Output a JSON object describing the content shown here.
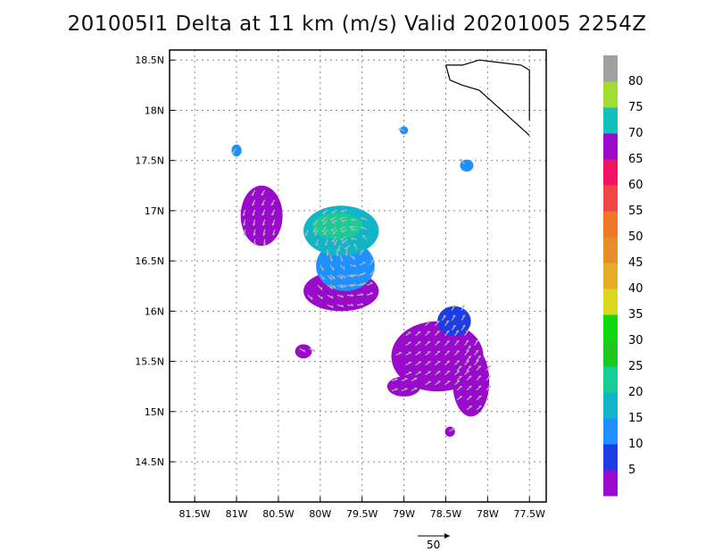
{
  "title": "201005I1 Delta at 11 km (m/s) Valid 20201005 2254Z",
  "chart_data": {
    "type": "heatmap",
    "title": "201005I1 Delta at 11 km (m/s) Valid 20201005 2254Z",
    "x_ticks": [
      {
        "value": -81.5,
        "label": "81.5W"
      },
      {
        "value": -81.0,
        "label": "81W"
      },
      {
        "value": -80.5,
        "label": "80.5W"
      },
      {
        "value": -80.0,
        "label": "80W"
      },
      {
        "value": -79.5,
        "label": "79.5W"
      },
      {
        "value": -79.0,
        "label": "79W"
      },
      {
        "value": -78.5,
        "label": "78.5W"
      },
      {
        "value": -78.0,
        "label": "78W"
      },
      {
        "value": -77.5,
        "label": "77.5W"
      }
    ],
    "y_ticks": [
      {
        "value": 14.5,
        "label": "14.5N"
      },
      {
        "value": 15.0,
        "label": "15N"
      },
      {
        "value": 15.5,
        "label": "15.5N"
      },
      {
        "value": 16.0,
        "label": "16N"
      },
      {
        "value": 16.5,
        "label": "16.5N"
      },
      {
        "value": 17.0,
        "label": "17N"
      },
      {
        "value": 17.5,
        "label": "17.5N"
      },
      {
        "value": 18.0,
        "label": "18N"
      },
      {
        "value": 18.5,
        "label": "18.5N"
      }
    ],
    "xlim": [
      -81.8,
      -77.3
    ],
    "ylim": [
      14.1,
      18.6
    ],
    "grid": true,
    "colorbar": {
      "levels": [
        {
          "label": "5",
          "color": "#9a0acb"
        },
        {
          "label": "10",
          "color": "#1e3ce6"
        },
        {
          "label": "15",
          "color": "#1e90ff"
        },
        {
          "label": "20",
          "color": "#12b4c8"
        },
        {
          "label": "25",
          "color": "#18cc96"
        },
        {
          "label": "30",
          "color": "#1ec81e"
        },
        {
          "label": "35",
          "color": "#10d810"
        },
        {
          "label": "40",
          "color": "#dcd820"
        },
        {
          "label": "45",
          "color": "#e6ac28"
        },
        {
          "label": "50",
          "color": "#e68c28"
        },
        {
          "label": "55",
          "color": "#ee7828"
        },
        {
          "label": "60",
          "color": "#f04646"
        },
        {
          "label": "65",
          "color": "#f01464"
        },
        {
          "label": "70",
          "color": "#9a0acb"
        },
        {
          "label": "75",
          "color": "#12c0c0"
        },
        {
          "label": "80",
          "color": "#a0dc32"
        },
        {
          "label": "",
          "color": "#a0a0a0"
        }
      ]
    },
    "regions": [
      {
        "level": 5,
        "center": [
          -80.7,
          16.95
        ],
        "radius": [
          0.25,
          0.3
        ]
      },
      {
        "level": 5,
        "center": [
          -79.75,
          16.2
        ],
        "radius": [
          0.45,
          0.2
        ]
      },
      {
        "level": 5,
        "center": [
          -78.6,
          15.55
        ],
        "radius": [
          0.55,
          0.35
        ]
      },
      {
        "level": 5,
        "center": [
          -78.2,
          15.3
        ],
        "radius": [
          0.22,
          0.35
        ]
      },
      {
        "level": 5,
        "center": [
          -80.2,
          15.6
        ],
        "radius": [
          0.1,
          0.07
        ]
      },
      {
        "level": 5,
        "center": [
          -79.0,
          15.25
        ],
        "radius": [
          0.2,
          0.1
        ]
      },
      {
        "level": 5,
        "center": [
          -78.45,
          14.8
        ],
        "radius": [
          0.06,
          0.05
        ]
      },
      {
        "level": 15,
        "center": [
          -79.7,
          16.45
        ],
        "radius": [
          0.35,
          0.25
        ]
      },
      {
        "level": 10,
        "center": [
          -78.4,
          15.9
        ],
        "radius": [
          0.2,
          0.15
        ]
      },
      {
        "level": 15,
        "center": [
          -78.25,
          17.45
        ],
        "radius": [
          0.08,
          0.06
        ]
      },
      {
        "level": 20,
        "center": [
          -79.75,
          16.8
        ],
        "radius": [
          0.45,
          0.25
        ]
      },
      {
        "level": 25,
        "center": [
          -79.8,
          16.85
        ],
        "radius": [
          0.3,
          0.13
        ]
      },
      {
        "level": 15,
        "center": [
          -81.0,
          17.6
        ],
        "radius": [
          0.06,
          0.06
        ]
      },
      {
        "level": 15,
        "center": [
          -79.0,
          17.8
        ],
        "radius": [
          0.05,
          0.04
        ]
      }
    ],
    "wind_vector_reference": {
      "value": 50,
      "label": "50"
    }
  },
  "coastline": [
    [
      -78.5,
      18.45
    ],
    [
      -78.3,
      18.45
    ],
    [
      -78.1,
      18.5
    ],
    [
      -77.9,
      18.48
    ],
    [
      -77.6,
      18.45
    ],
    [
      -77.5,
      18.4
    ],
    [
      -77.5,
      17.9
    ]
  ],
  "coastline2": [
    [
      -78.5,
      18.45
    ],
    [
      -78.45,
      18.3
    ],
    [
      -78.3,
      18.25
    ],
    [
      -78.1,
      18.2
    ],
    [
      -77.9,
      18.05
    ],
    [
      -77.7,
      17.9
    ],
    [
      -77.5,
      17.75
    ]
  ]
}
